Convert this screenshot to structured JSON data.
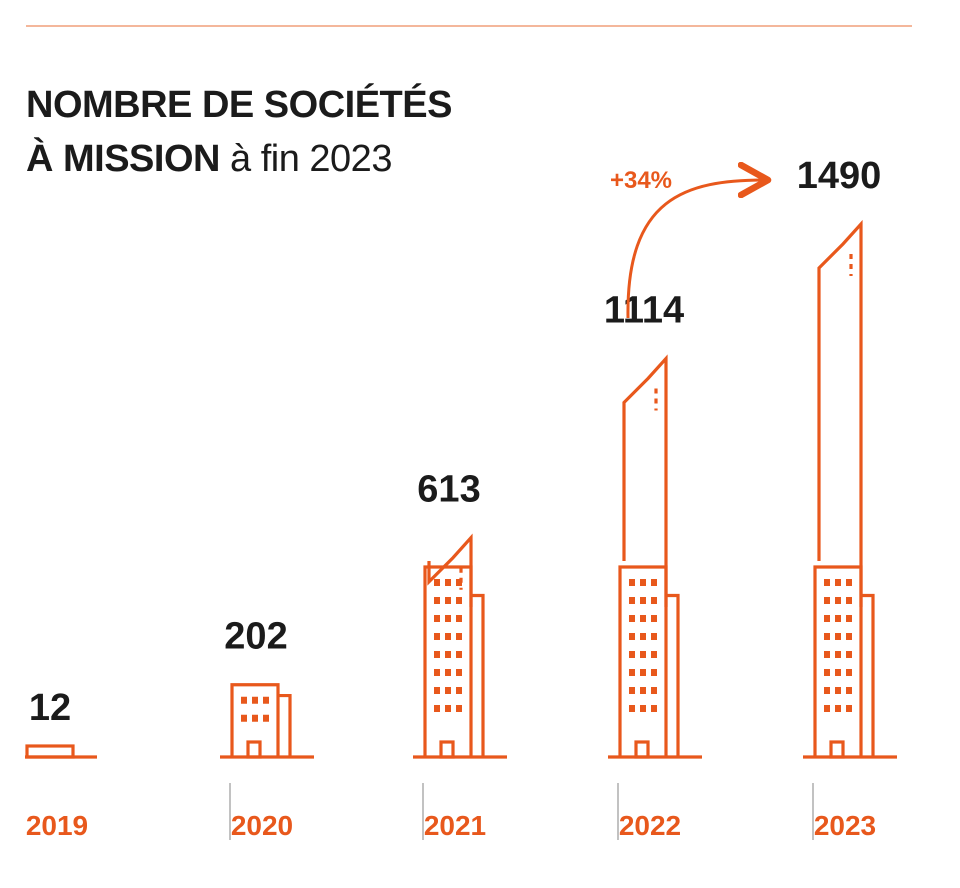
{
  "title": {
    "line1": "NOMBRE DE SOCIÉTÉS",
    "line2_bold": "À MISSION",
    "line2_light": "à fin 2023"
  },
  "colors": {
    "accent": "#e8581c",
    "text": "#1b1b1b",
    "divider": "#9a9a9a",
    "rule": "#f4b79b"
  },
  "chart_data": {
    "type": "bar",
    "style": "buildings",
    "categories": [
      "2019",
      "2020",
      "2021",
      "2022",
      "2023"
    ],
    "values": [
      12,
      202,
      613,
      1114,
      1490
    ],
    "annotations": [
      {
        "from": "2022",
        "to": "2023",
        "text": "+34%"
      }
    ],
    "grid": false,
    "legend": "none"
  }
}
